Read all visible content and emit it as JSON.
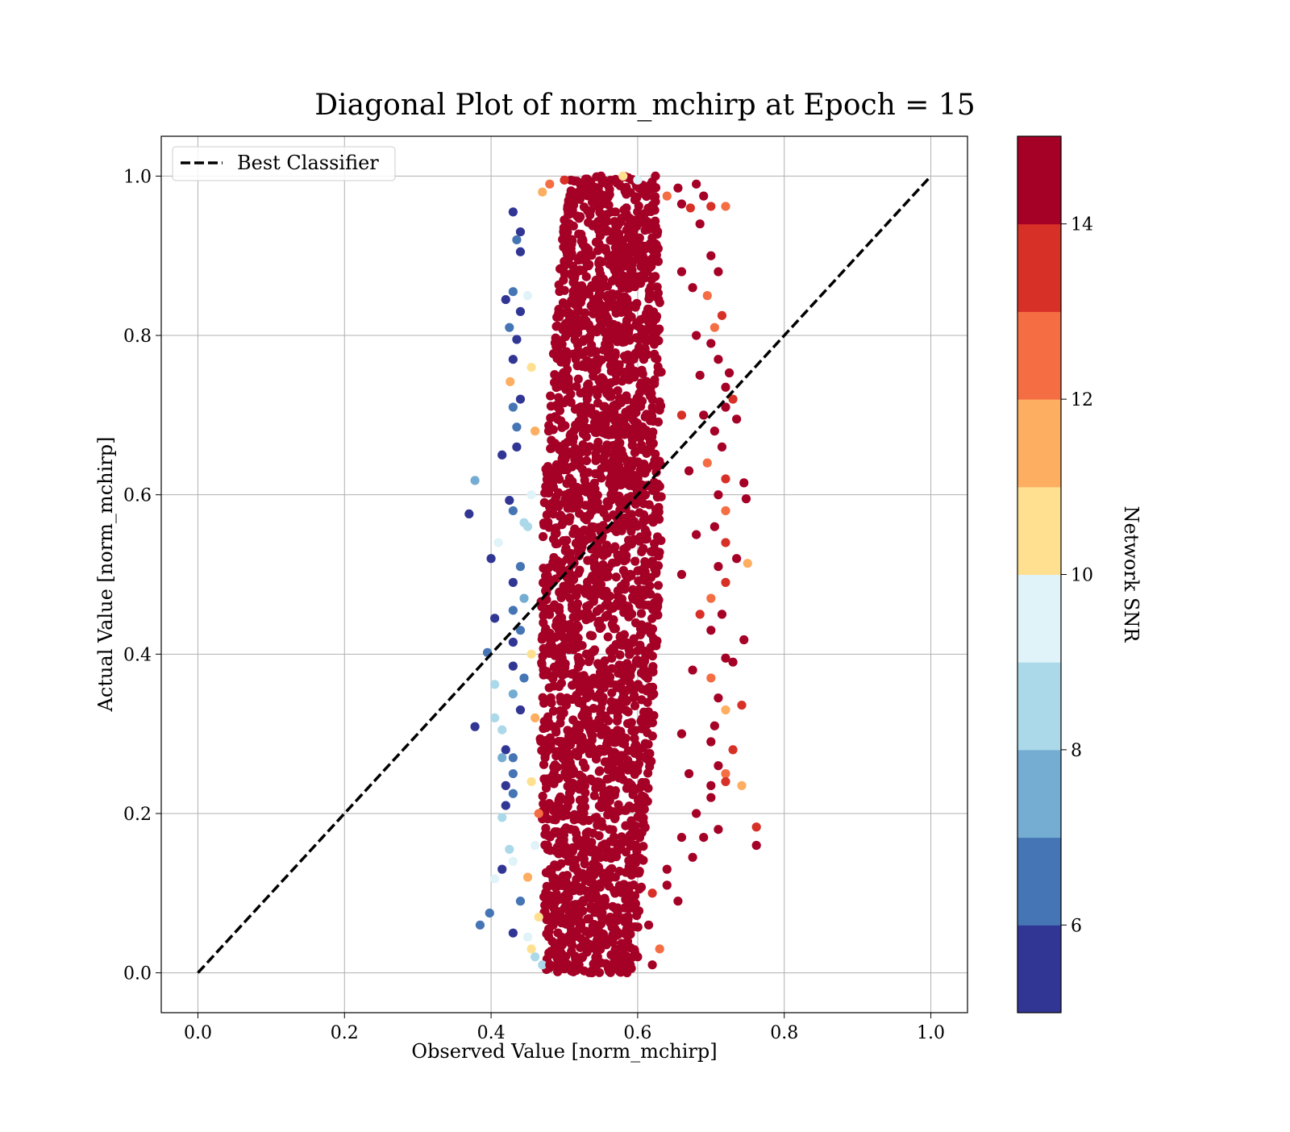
{
  "chart_data": {
    "type": "scatter",
    "title": "Diagonal Plot of norm_mchirp at Epoch = 15",
    "xlabel": "Observed Value [norm_mchirp]",
    "ylabel": "Actual Value [norm_mchirp]",
    "xlim": [
      -0.05,
      1.05
    ],
    "ylim": [
      -0.05,
      1.05
    ],
    "xticks": [
      0.0,
      0.2,
      0.4,
      0.6,
      0.8,
      1.0
    ],
    "yticks": [
      0.0,
      0.2,
      0.4,
      0.6,
      0.8,
      1.0
    ],
    "xtick_labels": [
      "0.0",
      "0.2",
      "0.4",
      "0.6",
      "0.8",
      "1.0"
    ],
    "ytick_labels": [
      "0.0",
      "0.2",
      "0.4",
      "0.6",
      "0.8",
      "1.0"
    ],
    "grid": true,
    "legend": {
      "position": "top-left",
      "entries": [
        "Best Classifier"
      ]
    },
    "best_classifier_line": {
      "x": [
        0.0,
        1.0
      ],
      "y": [
        0.0,
        1.0
      ],
      "style": "dashed",
      "color": "#000000"
    },
    "colorbar": {
      "label": "Network SNR",
      "range": [
        5,
        15
      ],
      "boundaries": [
        5,
        6,
        7,
        8,
        9,
        10,
        11,
        12,
        13,
        14,
        15
      ],
      "ticks": [
        6,
        8,
        10,
        12,
        14
      ],
      "tick_labels": [
        "6",
        "8",
        "10",
        "12",
        "14"
      ],
      "colormap": "RdYlBu_r",
      "colors": [
        "#313695",
        "#4575b4",
        "#74add1",
        "#abd9e9",
        "#e0f3f8",
        "#fee090",
        "#fdae61",
        "#f46d43",
        "#d73027",
        "#a50026"
      ]
    },
    "dense_region": {
      "x_center": 0.55,
      "x_halfwidth": 0.06,
      "y": [
        0.0,
        1.0
      ],
      "dominant_snr": 15
    },
    "series": [
      {
        "points": [
          [
            0.43,
            0.955
          ],
          [
            0.44,
            0.93
          ],
          [
            0.435,
            0.92
          ],
          [
            0.44,
            0.905
          ],
          [
            0.42,
            0.845
          ],
          [
            0.43,
            0.855
          ],
          [
            0.44,
            0.83
          ],
          [
            0.425,
            0.81
          ],
          [
            0.435,
            0.795
          ],
          [
            0.43,
            0.77
          ],
          [
            0.426,
            0.742
          ],
          [
            0.44,
            0.72
          ],
          [
            0.43,
            0.71
          ],
          [
            0.435,
            0.685
          ],
          [
            0.435,
            0.66
          ],
          [
            0.415,
            0.65
          ],
          [
            0.378,
            0.618
          ],
          [
            0.37,
            0.576
          ],
          [
            0.425,
            0.593
          ],
          [
            0.43,
            0.58
          ],
          [
            0.445,
            0.565
          ],
          [
            0.4,
            0.52
          ],
          [
            0.41,
            0.54
          ],
          [
            0.44,
            0.51
          ],
          [
            0.43,
            0.49
          ],
          [
            0.445,
            0.47
          ],
          [
            0.43,
            0.455
          ],
          [
            0.405,
            0.445
          ],
          [
            0.44,
            0.43
          ],
          [
            0.43,
            0.415
          ],
          [
            0.395,
            0.402
          ],
          [
            0.43,
            0.385
          ],
          [
            0.445,
            0.37
          ],
          [
            0.405,
            0.362
          ],
          [
            0.43,
            0.35
          ],
          [
            0.44,
            0.33
          ],
          [
            0.405,
            0.32
          ],
          [
            0.378,
            0.309
          ],
          [
            0.415,
            0.305
          ],
          [
            0.42,
            0.28
          ],
          [
            0.43,
            0.27
          ],
          [
            0.415,
            0.27
          ],
          [
            0.43,
            0.25
          ],
          [
            0.42,
            0.235
          ],
          [
            0.43,
            0.225
          ],
          [
            0.415,
            0.195
          ],
          [
            0.42,
            0.21
          ],
          [
            0.425,
            0.155
          ],
          [
            0.43,
            0.14
          ],
          [
            0.415,
            0.13
          ],
          [
            0.405,
            0.118
          ],
          [
            0.44,
            0.09
          ],
          [
            0.385,
            0.06
          ],
          [
            0.398,
            0.075
          ],
          [
            0.43,
            0.05
          ],
          [
            0.45,
            0.045
          ],
          [
            0.46,
            0.02
          ],
          [
            0.47,
            0.01
          ],
          [
            0.455,
            0.03
          ],
          [
            0.47,
            0.98
          ],
          [
            0.48,
            0.99
          ],
          [
            0.5,
            0.995
          ],
          [
            0.55,
            1.0
          ],
          [
            0.58,
            1.0
          ],
          [
            0.6,
            0.995
          ],
          [
            0.62,
            0.985
          ],
          [
            0.64,
            0.975
          ],
          [
            0.655,
            0.985
          ],
          [
            0.68,
            0.99
          ],
          [
            0.69,
            0.975
          ],
          [
            0.7,
            0.962
          ],
          [
            0.72,
            0.962
          ],
          [
            0.66,
            0.965
          ],
          [
            0.672,
            0.96
          ],
          [
            0.685,
            0.94
          ],
          [
            0.7,
            0.9
          ],
          [
            0.71,
            0.88
          ],
          [
            0.695,
            0.85
          ],
          [
            0.715,
            0.825
          ],
          [
            0.705,
            0.81
          ],
          [
            0.7,
            0.79
          ],
          [
            0.71,
            0.77
          ],
          [
            0.725,
            0.753
          ],
          [
            0.72,
            0.735
          ],
          [
            0.73,
            0.72
          ],
          [
            0.735,
            0.695
          ],
          [
            0.72,
            0.71
          ],
          [
            0.69,
            0.7
          ],
          [
            0.705,
            0.68
          ],
          [
            0.715,
            0.66
          ],
          [
            0.695,
            0.64
          ],
          [
            0.72,
            0.62
          ],
          [
            0.745,
            0.615
          ],
          [
            0.748,
            0.595
          ],
          [
            0.71,
            0.6
          ],
          [
            0.72,
            0.58
          ],
          [
            0.705,
            0.56
          ],
          [
            0.72,
            0.54
          ],
          [
            0.735,
            0.52
          ],
          [
            0.75,
            0.514
          ],
          [
            0.71,
            0.51
          ],
          [
            0.72,
            0.49
          ],
          [
            0.7,
            0.47
          ],
          [
            0.715,
            0.45
          ],
          [
            0.7,
            0.43
          ],
          [
            0.745,
            0.418
          ],
          [
            0.72,
            0.395
          ],
          [
            0.73,
            0.39
          ],
          [
            0.7,
            0.37
          ],
          [
            0.71,
            0.345
          ],
          [
            0.742,
            0.336
          ],
          [
            0.72,
            0.33
          ],
          [
            0.705,
            0.31
          ],
          [
            0.7,
            0.29
          ],
          [
            0.73,
            0.28
          ],
          [
            0.71,
            0.26
          ],
          [
            0.72,
            0.25
          ],
          [
            0.7,
            0.235
          ],
          [
            0.742,
            0.235
          ],
          [
            0.72,
            0.24
          ],
          [
            0.7,
            0.22
          ],
          [
            0.68,
            0.2
          ],
          [
            0.762,
            0.183
          ],
          [
            0.762,
            0.16
          ],
          [
            0.71,
            0.18
          ],
          [
            0.69,
            0.17
          ],
          [
            0.675,
            0.145
          ],
          [
            0.66,
            0.17
          ],
          [
            0.655,
            0.09
          ],
          [
            0.64,
            0.11
          ],
          [
            0.62,
            0.1
          ],
          [
            0.615,
            0.06
          ],
          [
            0.6,
            0.02
          ],
          [
            0.62,
            0.01
          ],
          [
            0.56,
            0.005
          ],
          [
            0.52,
            0.01
          ],
          [
            0.5,
            0.005
          ],
          [
            0.48,
            0.01
          ],
          [
            0.63,
            0.03
          ],
          [
            0.64,
            0.13
          ],
          [
            0.66,
            0.3
          ],
          [
            0.66,
            0.5
          ],
          [
            0.66,
            0.7
          ],
          [
            0.66,
            0.88
          ],
          [
            0.675,
            0.86
          ],
          [
            0.68,
            0.8
          ],
          [
            0.685,
            0.75
          ],
          [
            0.67,
            0.63
          ],
          [
            0.68,
            0.55
          ],
          [
            0.685,
            0.45
          ],
          [
            0.675,
            0.38
          ],
          [
            0.67,
            0.25
          ],
          [
            0.45,
            0.85
          ],
          [
            0.455,
            0.76
          ],
          [
            0.46,
            0.68
          ],
          [
            0.455,
            0.6
          ],
          [
            0.45,
            0.56
          ],
          [
            0.455,
            0.4
          ],
          [
            0.46,
            0.32
          ],
          [
            0.455,
            0.24
          ],
          [
            0.46,
            0.16
          ],
          [
            0.465,
            0.07
          ],
          [
            0.45,
            0.12
          ],
          [
            0.465,
            0.2
          ]
        ],
        "snr": [
          5,
          5,
          6,
          5,
          5,
          6,
          5,
          6,
          5,
          5,
          11,
          5,
          6,
          6,
          5,
          5,
          7,
          5,
          5,
          6,
          8,
          5,
          9,
          6,
          5,
          7,
          6,
          5,
          6,
          5,
          6,
          5,
          6,
          8,
          7,
          5,
          8,
          5,
          8,
          5,
          6,
          7,
          6,
          5,
          6,
          8,
          5,
          8,
          9,
          5,
          9,
          6,
          6,
          6,
          5,
          9,
          8,
          8,
          10,
          11,
          12,
          13,
          14,
          10,
          9,
          14,
          12,
          15,
          15,
          15,
          13,
          12,
          15,
          13,
          15,
          15,
          14,
          12,
          13,
          12,
          15,
          15,
          15,
          14,
          13,
          15,
          15,
          15,
          14,
          15,
          12,
          13,
          14,
          15,
          15,
          12,
          14,
          13,
          15,
          11,
          15,
          13,
          12,
          15,
          14,
          15,
          14,
          15,
          12,
          14,
          13,
          11,
          15,
          14,
          13,
          15,
          12,
          14,
          11,
          13,
          15,
          15,
          13,
          15,
          14,
          15,
          15,
          14,
          15,
          14,
          13,
          15,
          15,
          14,
          15,
          14,
          15,
          15,
          12,
          15,
          14,
          15,
          13,
          15,
          14,
          15,
          15,
          15,
          14,
          13,
          15,
          14,
          9,
          10,
          11,
          9,
          8,
          10,
          11,
          10,
          9,
          10,
          11,
          12
        ]
      }
    ]
  }
}
